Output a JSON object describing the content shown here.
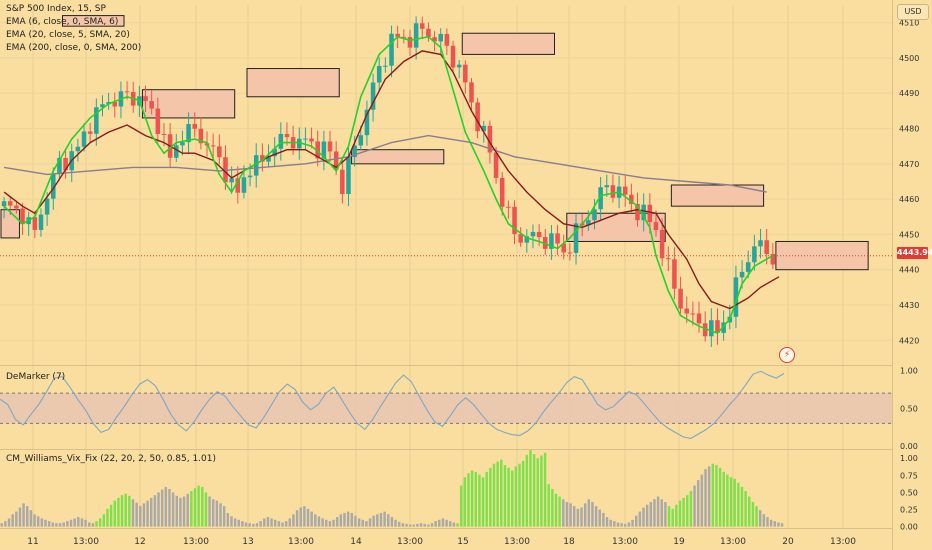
{
  "header": {
    "title_line": "S&P 500 Index, 15, SP",
    "indicators": [
      "EMA (6, close, 0, SMA, 6)",
      "EMA (20, close, 5, SMA, 20)",
      "EMA (200, close, 0, SMA, 200)"
    ],
    "currency": "USD",
    "last_price": "4443.94"
  },
  "panes": {
    "demarker_title": "DeMarker (7)",
    "vix_title": "CM_Williams_Vix_Fix (22, 20, 2, 50, 0.85, 1.01)"
  },
  "colors": {
    "background": "#f9dea0",
    "candle_up": "#26a69a",
    "candle_down": "#ef5350",
    "ema_fast": "#22d22a",
    "ema_slow": "#8b1a1a",
    "ema_200": "#8a7c92",
    "demarker_line": "#7ea7c4",
    "vix_green": "#7de24a",
    "vix_gray": "#a9a9a9",
    "box_fill": "#f4c5a8"
  },
  "chart_data": [
    {
      "type": "candlestick",
      "title": "S&P 500 Index, 15, SP",
      "x_ticks": [
        "11",
        "13:00",
        "12",
        "13:00",
        "13",
        "13:00",
        "14",
        "13:00",
        "15",
        "13:00",
        "18",
        "13:00",
        "19",
        "13:00",
        "20",
        "13:00"
      ],
      "y_ticks": [
        4420,
        4430,
        4440,
        4450,
        4460,
        4470,
        4480,
        4490,
        4500,
        4510
      ],
      "ylim": [
        4413,
        4515
      ],
      "price_points": [
        [
          0,
          4458
        ],
        [
          3,
          4456
        ],
        [
          5,
          4450
        ],
        [
          6,
          4457
        ],
        [
          9,
          4470
        ],
        [
          12,
          4474
        ],
        [
          14,
          4482
        ],
        [
          17,
          4488
        ],
        [
          20,
          4489
        ],
        [
          22,
          4489
        ],
        [
          25,
          4482
        ],
        [
          27,
          4471
        ],
        [
          29,
          4479
        ],
        [
          31,
          4479
        ],
        [
          33,
          4476
        ],
        [
          36,
          4468
        ],
        [
          38,
          4461
        ],
        [
          40,
          4470
        ],
        [
          42,
          4470
        ],
        [
          44,
          4476
        ],
        [
          47,
          4477
        ],
        [
          49,
          4476
        ],
        [
          51,
          4475
        ],
        [
          53,
          4473
        ],
        [
          55,
          4464
        ],
        [
          58,
          4480
        ],
        [
          61,
          4497
        ],
        [
          63,
          4505
        ],
        [
          66,
          4506
        ],
        [
          68,
          4508
        ],
        [
          70,
          4506
        ],
        [
          72,
          4503
        ],
        [
          74,
          4497
        ],
        [
          76,
          4487
        ],
        [
          78,
          4478
        ],
        [
          79,
          4473
        ],
        [
          81,
          4460
        ],
        [
          83,
          4450
        ],
        [
          86,
          4449
        ],
        [
          88,
          4449
        ],
        [
          90,
          4447
        ],
        [
          91,
          4445
        ],
        [
          93,
          4450
        ],
        [
          96,
          4458
        ],
        [
          98,
          4464
        ],
        [
          100,
          4462
        ],
        [
          103,
          4457
        ],
        [
          106,
          4452
        ],
        [
          107,
          4445
        ],
        [
          109,
          4435
        ],
        [
          111,
          4427
        ],
        [
          114,
          4424
        ],
        [
          116,
          4422
        ],
        [
          118,
          4429
        ],
        [
          120,
          4440
        ],
        [
          122,
          4447
        ],
        [
          123,
          4446
        ],
        [
          125,
          4443.94
        ]
      ],
      "ema_fast_points": [
        [
          0,
          4458
        ],
        [
          3,
          4453
        ],
        [
          5,
          4455
        ],
        [
          8,
          4468
        ],
        [
          11,
          4477
        ],
        [
          14,
          4483
        ],
        [
          17,
          4487
        ],
        [
          20,
          4489
        ],
        [
          22,
          4488
        ],
        [
          24,
          4478
        ],
        [
          26,
          4473
        ],
        [
          28,
          4476
        ],
        [
          31,
          4477
        ],
        [
          33,
          4476
        ],
        [
          35,
          4467
        ],
        [
          37,
          4462
        ],
        [
          39,
          4468
        ],
        [
          42,
          4471
        ],
        [
          45,
          4476
        ],
        [
          48,
          4476
        ],
        [
          50,
          4475
        ],
        [
          52,
          4472
        ],
        [
          54,
          4468
        ],
        [
          56,
          4475
        ],
        [
          58,
          4489
        ],
        [
          61,
          4501
        ],
        [
          64,
          4506
        ],
        [
          66,
          4505
        ],
        [
          69,
          4506
        ],
        [
          71,
          4503
        ],
        [
          73,
          4491
        ],
        [
          75,
          4479
        ],
        [
          78,
          4468
        ],
        [
          80,
          4460
        ],
        [
          82,
          4453
        ],
        [
          85,
          4449
        ],
        [
          87,
          4448
        ],
        [
          90,
          4446
        ],
        [
          92,
          4449
        ],
        [
          95,
          4455
        ],
        [
          97,
          4461
        ],
        [
          100,
          4462
        ],
        [
          103,
          4458
        ],
        [
          105,
          4452
        ],
        [
          106,
          4444
        ],
        [
          108,
          4434
        ],
        [
          110,
          4427
        ],
        [
          113,
          4424
        ],
        [
          116,
          4422
        ],
        [
          118,
          4426
        ],
        [
          120,
          4436
        ],
        [
          122,
          4441
        ],
        [
          124,
          4443
        ],
        [
          125,
          4444
        ]
      ],
      "ema_slow_points": [
        [
          0,
          4462
        ],
        [
          3,
          4458
        ],
        [
          5,
          4456
        ],
        [
          8,
          4463
        ],
        [
          11,
          4471
        ],
        [
          14,
          4476
        ],
        [
          17,
          4479
        ],
        [
          20,
          4481
        ],
        [
          23,
          4478
        ],
        [
          26,
          4476
        ],
        [
          29,
          4473
        ],
        [
          31,
          4473
        ],
        [
          34,
          4471
        ],
        [
          37,
          4466
        ],
        [
          40,
          4469
        ],
        [
          43,
          4472
        ],
        [
          46,
          4474
        ],
        [
          49,
          4474
        ],
        [
          52,
          4471
        ],
        [
          54,
          4469
        ],
        [
          56,
          4472
        ],
        [
          59,
          4484
        ],
        [
          62,
          4494
        ],
        [
          65,
          4499
        ],
        [
          68,
          4502
        ],
        [
          71,
          4501
        ],
        [
          73,
          4496
        ],
        [
          76,
          4485
        ],
        [
          79,
          4476
        ],
        [
          82,
          4468
        ],
        [
          85,
          4462
        ],
        [
          88,
          4457
        ],
        [
          91,
          4453
        ],
        [
          94,
          4452
        ],
        [
          97,
          4454
        ],
        [
          100,
          4456
        ],
        [
          103,
          4457
        ],
        [
          106,
          4456
        ],
        [
          108,
          4450
        ],
        [
          111,
          4443
        ],
        [
          113,
          4436
        ],
        [
          115,
          4431
        ],
        [
          118,
          4429
        ],
        [
          121,
          4432
        ],
        [
          123,
          4435
        ],
        [
          125,
          4437
        ],
        [
          126,
          4438
        ]
      ],
      "ema200_points": [
        [
          0,
          4469
        ],
        [
          7,
          4467
        ],
        [
          14,
          4468
        ],
        [
          21,
          4469
        ],
        [
          28,
          4469
        ],
        [
          35,
          4468
        ],
        [
          42,
          4469
        ],
        [
          49,
          4470
        ],
        [
          56,
          4472
        ],
        [
          63,
          4476
        ],
        [
          69,
          4478
        ],
        [
          76,
          4476
        ],
        [
          83,
          4472
        ],
        [
          90,
          4470
        ],
        [
          97,
          4468
        ],
        [
          104,
          4466
        ],
        [
          111,
          4465
        ],
        [
          118,
          4464
        ],
        [
          124,
          4462
        ]
      ],
      "zones": [
        {
          "x": [
            0,
            3
          ],
          "y": [
            4449,
            4457
          ]
        },
        {
          "x": [
            10,
            20
          ],
          "y": [
            4509,
            4512
          ]
        },
        {
          "x": [
            23,
            38
          ],
          "y": [
            4483,
            4491
          ]
        },
        {
          "x": [
            40,
            55
          ],
          "y": [
            4489,
            4497
          ]
        },
        {
          "x": [
            57,
            72
          ],
          "y": [
            4470,
            4474
          ]
        },
        {
          "x": [
            75,
            90
          ],
          "y": [
            4501,
            4507
          ]
        },
        {
          "x": [
            92,
            108
          ],
          "y": [
            4448,
            4456
          ]
        },
        {
          "x": [
            109,
            124
          ],
          "y": [
            4458,
            4464
          ]
        },
        {
          "x": [
            126,
            141
          ],
          "y": [
            4440,
            4448
          ]
        }
      ]
    },
    {
      "type": "line",
      "title": "DeMarker (7)",
      "y_ticks": [
        0.0,
        0.5,
        1.0
      ],
      "ylim": [
        -0.04,
        1.06
      ],
      "band": [
        0.3,
        0.7
      ],
      "values": [
        0.62,
        0.55,
        0.35,
        0.28,
        0.42,
        0.55,
        0.72,
        0.9,
        0.92,
        0.78,
        0.62,
        0.48,
        0.3,
        0.18,
        0.22,
        0.38,
        0.52,
        0.68,
        0.82,
        0.88,
        0.8,
        0.62,
        0.42,
        0.28,
        0.2,
        0.32,
        0.48,
        0.62,
        0.72,
        0.66,
        0.52,
        0.4,
        0.28,
        0.24,
        0.38,
        0.55,
        0.72,
        0.82,
        0.75,
        0.58,
        0.48,
        0.55,
        0.7,
        0.78,
        0.62,
        0.45,
        0.3,
        0.22,
        0.35,
        0.52,
        0.68,
        0.84,
        0.94,
        0.85,
        0.66,
        0.48,
        0.32,
        0.26,
        0.4,
        0.55,
        0.64,
        0.55,
        0.42,
        0.3,
        0.22,
        0.18,
        0.15,
        0.14,
        0.2,
        0.3,
        0.45,
        0.58,
        0.7,
        0.84,
        0.92,
        0.88,
        0.72,
        0.55,
        0.48,
        0.52,
        0.62,
        0.72,
        0.68,
        0.56,
        0.44,
        0.32,
        0.24,
        0.18,
        0.12,
        0.1,
        0.16,
        0.22,
        0.3,
        0.42,
        0.55,
        0.66,
        0.8,
        0.95,
        0.99,
        0.94,
        0.9,
        0.96
      ]
    },
    {
      "type": "bar",
      "title": "CM_Williams_Vix_Fix (22, 20, 2, 50, 0.85, 1.01)",
      "y_ticks": [
        0.0,
        0.25,
        0.5,
        0.75,
        1.0
      ],
      "ylim": [
        -0.02,
        1.12
      ],
      "values": [
        0.05,
        0.08,
        0.12,
        0.18,
        0.22,
        0.28,
        0.34,
        0.3,
        0.24,
        0.18,
        0.15,
        0.12,
        0.1,
        0.08,
        0.06,
        0.05,
        0.05,
        0.06,
        0.08,
        0.1,
        0.12,
        0.14,
        0.12,
        0.1,
        0.06,
        0.05,
        0.08,
        0.12,
        0.18,
        0.26,
        0.32,
        0.38,
        0.42,
        0.46,
        0.48,
        0.45,
        0.4,
        0.35,
        0.3,
        0.34,
        0.38,
        0.42,
        0.46,
        0.5,
        0.54,
        0.58,
        0.55,
        0.5,
        0.45,
        0.42,
        0.44,
        0.48,
        0.52,
        0.56,
        0.6,
        0.58,
        0.5,
        0.44,
        0.4,
        0.38,
        0.34,
        0.3,
        0.2,
        0.15,
        0.12,
        0.1,
        0.08,
        0.06,
        0.05,
        0.04,
        0.05,
        0.08,
        0.12,
        0.14,
        0.12,
        0.1,
        0.08,
        0.06,
        0.08,
        0.12,
        0.18,
        0.24,
        0.28,
        0.3,
        0.26,
        0.22,
        0.18,
        0.15,
        0.12,
        0.1,
        0.08,
        0.1,
        0.14,
        0.18,
        0.2,
        0.22,
        0.2,
        0.16,
        0.12,
        0.1,
        0.08,
        0.12,
        0.16,
        0.18,
        0.2,
        0.22,
        0.18,
        0.14,
        0.1,
        0.07,
        0.05,
        0.04,
        0.03,
        0.03,
        0.04,
        0.05,
        0.04,
        0.03,
        0.05,
        0.08,
        0.1,
        0.12,
        0.1,
        0.08,
        0.06,
        0.05,
        0.6,
        0.72,
        0.78,
        0.82,
        0.8,
        0.76,
        0.72,
        0.8,
        0.86,
        0.92,
        0.95,
        0.98,
        0.9,
        0.86,
        0.82,
        0.88,
        0.92,
        0.96,
        1.05,
        1.12,
        1.06,
        1.0,
        1.04,
        1.08,
        0.62,
        0.55,
        0.48,
        0.44,
        0.4,
        0.36,
        0.34,
        0.3,
        0.26,
        0.28,
        0.34,
        0.4,
        0.36,
        0.3,
        0.25,
        0.2,
        0.14,
        0.1,
        0.08,
        0.06,
        0.05,
        0.04,
        0.06,
        0.1,
        0.16,
        0.22,
        0.28,
        0.32,
        0.36,
        0.4,
        0.44,
        0.4,
        0.36,
        0.3,
        0.26,
        0.32,
        0.38,
        0.42,
        0.46,
        0.52,
        0.6,
        0.68,
        0.76,
        0.84,
        0.88,
        0.92,
        0.9,
        0.86,
        0.8,
        0.76,
        0.72,
        0.7,
        0.64,
        0.58,
        0.52,
        0.44,
        0.36,
        0.3,
        0.24,
        0.18,
        0.14,
        0.1,
        0.08,
        0.06,
        0.05
      ],
      "green_from": [
        26,
        52,
        125,
        154,
        183,
        206
      ]
    }
  ]
}
